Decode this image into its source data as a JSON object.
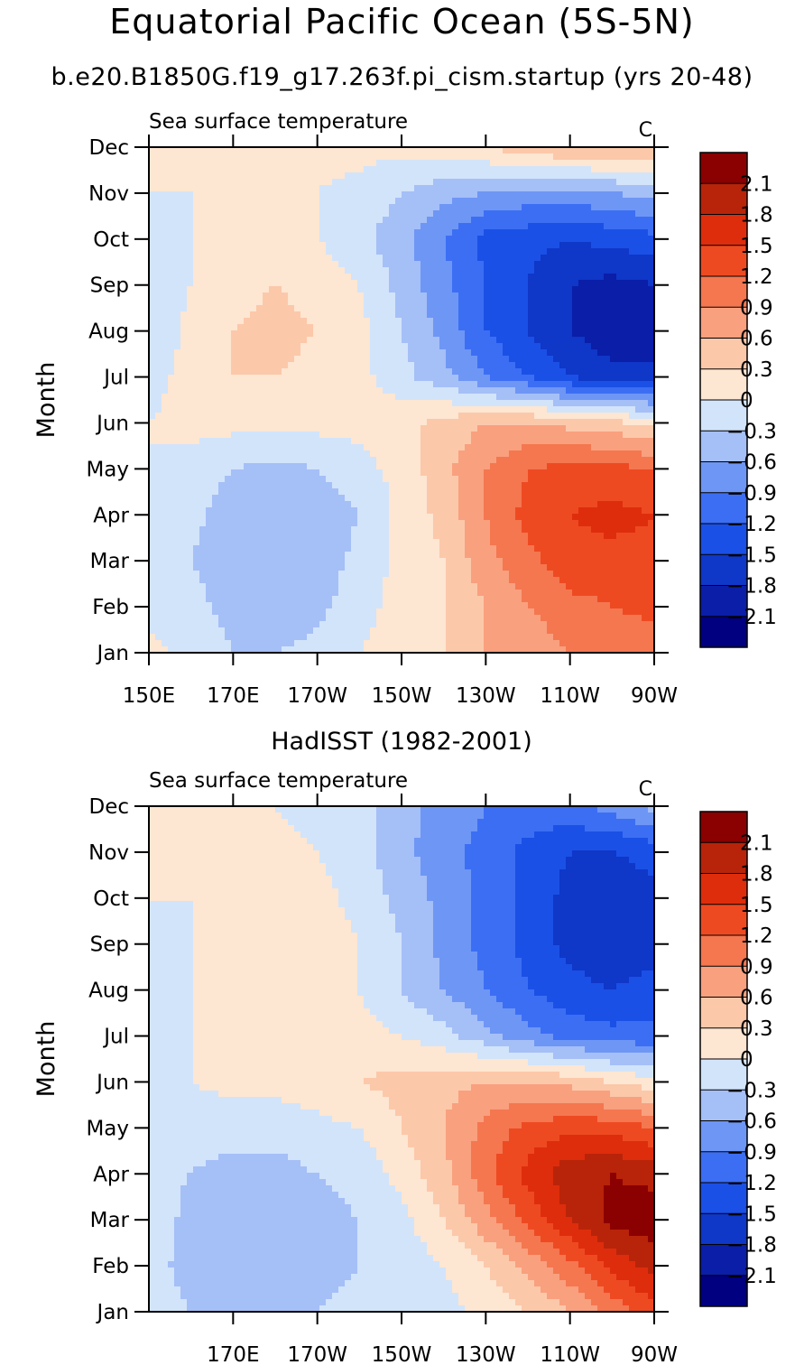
{
  "title": "Equatorial Pacific Ocean (5S-5N)",
  "subtitle": "b.e20.B1850G.f19_g17.263f.pi_cism.startup (yrs 20-48)",
  "colors": {
    "levels": [
      "#000080",
      "#0a1ea8",
      "#0f37c8",
      "#1b50e6",
      "#3c6ef4",
      "#6e96f5",
      "#a5bff7",
      "#d2e4fa",
      "#fde6d2",
      "#fcc8aa",
      "#f9a07e",
      "#f47750",
      "#ee4a22",
      "#de2d0c",
      "#b8240a",
      "#8b0000"
    ]
  },
  "chart_data": [
    {
      "type": "heatmap",
      "panel_title": "",
      "left_label": "Sea surface temperature",
      "right_label": "C",
      "ylabel": "Month",
      "x_values": [
        150,
        160,
        170,
        180,
        190,
        200,
        210,
        220,
        230,
        240,
        250,
        260,
        270
      ],
      "x_tick_values": [
        150,
        170,
        190,
        210,
        230,
        250,
        270
      ],
      "x_tick_labels": [
        "150E",
        "170E",
        "170W",
        "150W",
        "130W",
        "110W",
        "90W"
      ],
      "y_tick_labels": [
        "Jan",
        "Feb",
        "Mar",
        "Apr",
        "May",
        "Jun",
        "Jul",
        "Aug",
        "Sep",
        "Oct",
        "Nov",
        "Dec"
      ],
      "colorbar_levels": [
        -2.1,
        -1.8,
        -1.5,
        -1.2,
        -0.9,
        -0.6,
        -0.3,
        0,
        0.3,
        0.6,
        0.9,
        1.2,
        1.5,
        1.8,
        2.1
      ],
      "colorbar_labels": [
        "2.1",
        "1.8",
        "1.5",
        "1.2",
        "0.9",
        "0.6",
        "0.3",
        "0",
        "-0.3",
        "-0.6",
        "-0.9",
        "-1.2",
        "-1.5",
        "-1.8",
        "-2.1"
      ],
      "values": [
        [
          0.1,
          -0.1,
          -0.3,
          -0.3,
          -0.2,
          0.0,
          0.1,
          0.3,
          0.6,
          0.7,
          0.9,
          0.9,
          1.0
        ],
        [
          -0.1,
          -0.2,
          -0.4,
          -0.5,
          -0.4,
          -0.1,
          0.1,
          0.3,
          0.6,
          0.9,
          1.1,
          1.2,
          1.3
        ],
        [
          -0.1,
          -0.3,
          -0.5,
          -0.6,
          -0.5,
          -0.2,
          0.1,
          0.3,
          0.8,
          1.1,
          1.4,
          1.4,
          1.4
        ],
        [
          -0.1,
          -0.2,
          -0.5,
          -0.6,
          -0.5,
          -0.3,
          0.1,
          0.4,
          0.9,
          1.3,
          1.5,
          1.6,
          1.5
        ],
        [
          0.0,
          -0.1,
          -0.3,
          -0.4,
          -0.3,
          -0.1,
          0.1,
          0.5,
          0.9,
          1.2,
          1.3,
          1.3,
          1.2
        ],
        [
          0.0,
          0.1,
          0.1,
          0.1,
          0.1,
          0.1,
          0.2,
          0.4,
          0.6,
          0.6,
          0.5,
          0.4,
          0.2
        ],
        [
          -0.1,
          0.1,
          0.3,
          0.3,
          0.2,
          0.1,
          -0.2,
          -0.5,
          -0.9,
          -1.2,
          -1.5,
          -1.7,
          -1.7
        ],
        [
          -0.3,
          0.1,
          0.3,
          0.4,
          0.3,
          0.1,
          -0.3,
          -0.7,
          -1.2,
          -1.5,
          -1.8,
          -2.0,
          -2.0
        ],
        [
          -0.2,
          0.0,
          0.2,
          0.3,
          0.2,
          0.0,
          -0.4,
          -0.8,
          -1.2,
          -1.5,
          -1.8,
          -1.9,
          -1.8
        ],
        [
          -0.1,
          0.0,
          0.1,
          0.1,
          0.0,
          -0.2,
          -0.5,
          -0.9,
          -1.3,
          -1.4,
          -1.5,
          -1.4,
          -1.3
        ],
        [
          0.0,
          0.0,
          0.0,
          0.0,
          0.0,
          -0.1,
          -0.3,
          -0.5,
          -0.6,
          -0.7,
          -0.7,
          -0.6,
          -0.5
        ],
        [
          0.0,
          0.0,
          0.0,
          0.0,
          0.1,
          0.1,
          0.1,
          0.2,
          0.3,
          0.5,
          0.6,
          0.6,
          0.6
        ]
      ]
    },
    {
      "type": "heatmap",
      "panel_title": "HadISST (1982-2001)",
      "left_label": "Sea surface temperature",
      "right_label": "C",
      "ylabel": "Month",
      "x_values": [
        150,
        160,
        170,
        180,
        190,
        200,
        210,
        220,
        230,
        240,
        250,
        260,
        270
      ],
      "x_tick_values": [
        170,
        190,
        210,
        230,
        250,
        270
      ],
      "x_tick_labels": [
        "170E",
        "170W",
        "150W",
        "130W",
        "110W",
        "90W"
      ],
      "y_tick_labels": [
        "Jan",
        "Feb",
        "Mar",
        "Apr",
        "May",
        "Jun",
        "Jul",
        "Aug",
        "Sep",
        "Oct",
        "Nov",
        "Dec"
      ],
      "colorbar_levels": [
        -2.1,
        -1.8,
        -1.5,
        -1.2,
        -0.9,
        -0.6,
        -0.3,
        0,
        0.3,
        0.6,
        0.9,
        1.2,
        1.5,
        1.8,
        2.1
      ],
      "colorbar_labels": [
        "2.1",
        "1.8",
        "1.5",
        "1.2",
        "0.9",
        "0.6",
        "0.3",
        "0",
        "-0.3",
        "-0.6",
        "-0.9",
        "-1.2",
        "-1.5",
        "-1.8",
        "-2.1"
      ],
      "values": [
        [
          -0.2,
          -0.3,
          -0.4,
          -0.4,
          -0.3,
          -0.2,
          -0.2,
          -0.1,
          0.1,
          0.3,
          0.6,
          1.0,
          1.4
        ],
        [
          -0.2,
          -0.4,
          -0.5,
          -0.5,
          -0.4,
          -0.3,
          -0.2,
          0.0,
          0.3,
          0.7,
          1.1,
          1.6,
          1.9
        ],
        [
          -0.1,
          -0.4,
          -0.5,
          -0.5,
          -0.4,
          -0.3,
          -0.1,
          0.3,
          0.8,
          1.3,
          1.8,
          2.2,
          2.3
        ],
        [
          -0.2,
          -0.3,
          -0.4,
          -0.4,
          -0.3,
          -0.2,
          0.1,
          0.5,
          1.1,
          1.6,
          2.0,
          2.1,
          2.0
        ],
        [
          -0.2,
          -0.2,
          -0.2,
          -0.2,
          -0.1,
          0.0,
          0.3,
          0.6,
          1.0,
          1.3,
          1.4,
          1.4,
          1.2
        ],
        [
          -0.1,
          0.0,
          0.1,
          0.1,
          0.2,
          0.3,
          0.4,
          0.5,
          0.6,
          0.6,
          0.5,
          0.3,
          0.1
        ],
        [
          -0.1,
          0.0,
          0.1,
          0.2,
          0.2,
          0.1,
          0.0,
          -0.2,
          -0.5,
          -0.8,
          -1.0,
          -1.1,
          -1.1
        ],
        [
          -0.2,
          0.0,
          0.2,
          0.2,
          0.2,
          0.0,
          -0.3,
          -0.6,
          -0.9,
          -1.2,
          -1.4,
          -1.5,
          -1.4
        ],
        [
          -0.1,
          0.0,
          0.2,
          0.3,
          0.2,
          0.0,
          -0.3,
          -0.7,
          -1.0,
          -1.3,
          -1.6,
          -1.7,
          -1.6
        ],
        [
          0.0,
          0.0,
          0.1,
          0.2,
          0.1,
          -0.1,
          -0.4,
          -0.7,
          -1.0,
          -1.3,
          -1.6,
          -1.7,
          -1.6
        ],
        [
          0.0,
          0.0,
          0.1,
          0.1,
          0.0,
          -0.2,
          -0.5,
          -0.8,
          -1.0,
          -1.3,
          -1.5,
          -1.5,
          -1.4
        ],
        [
          0.0,
          0.0,
          0.0,
          0.0,
          -0.1,
          -0.2,
          -0.5,
          -0.7,
          -0.9,
          -1.0,
          -1.0,
          -0.8,
          -0.5
        ]
      ]
    }
  ]
}
